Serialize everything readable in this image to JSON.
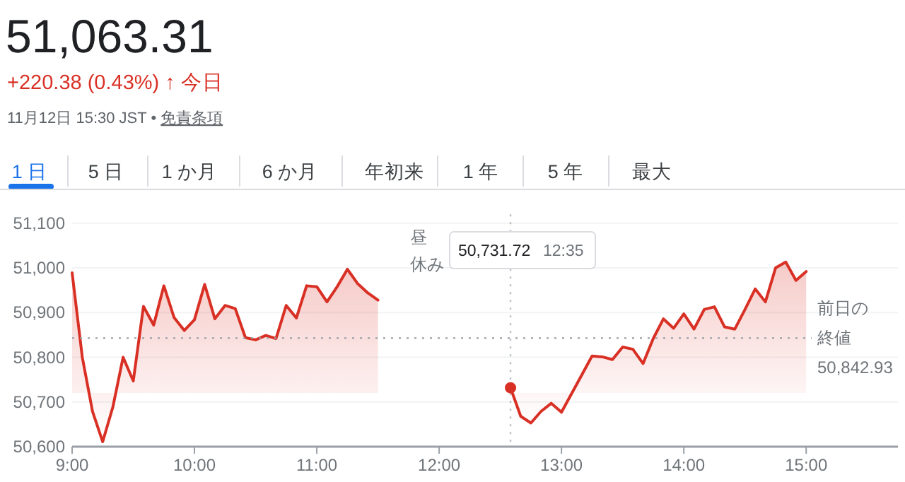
{
  "chart_data": {
    "type": "area",
    "title": "51,063.31",
    "subtitle": "+220.38 (0.43%) ↑ 今日",
    "annotations": [
      "11月12日 15:30 JST • 免責条項",
      "1 日",
      "5 日",
      "1 か月",
      "6 か月",
      "年初来",
      "1 年",
      "5 年",
      "最大",
      "昼休み",
      "50,731.72 12:35",
      "50,842.93"
    ],
    "x": [
      9,
      9.0833,
      9.1667,
      9.25,
      9.3333,
      9.4167,
      9.5,
      9.5833,
      9.6667,
      9.75,
      9.8333,
      9.9167,
      10,
      10.0833,
      10.1667,
      10.25,
      10.3333,
      10.4167,
      10.5,
      10.5833,
      10.6667,
      10.75,
      10.8333,
      10.9167,
      11,
      11.0833,
      11.1667,
      11.25,
      11.3333,
      11.4167,
      11.5,
      12.5833,
      12.6667,
      12.75,
      12.8333,
      12.9167,
      13,
      13.0833,
      13.1667,
      13.25,
      13.3333,
      13.4167,
      13.5,
      13.5833,
      13.6667,
      13.75,
      13.8333,
      13.9167,
      14,
      14.0833,
      14.1667,
      14.25,
      14.3333,
      14.4167,
      14.5,
      14.5833,
      14.6667,
      14.75,
      14.8333,
      14.9167,
      15
    ],
    "series": [
      {
        "color": "#d93025",
        "values": [
          50989,
          50800,
          50679,
          50611,
          50689,
          50800,
          50747,
          50914,
          50872,
          50960,
          50889,
          50860,
          50884,
          50963,
          50886,
          50916,
          50909,
          50844,
          50839,
          50849,
          50842,
          50916,
          50888,
          50960,
          50958,
          50924,
          50958,
          50997,
          50965,
          50944,
          50928,
          50731.72,
          50668,
          50653,
          50679,
          50697,
          50677,
          50719,
          50761,
          50803,
          50801,
          50795,
          50823,
          50818,
          50786,
          50842,
          50886,
          50865,
          50897,
          50863,
          50907,
          50913,
          50868,
          50863,
          50907,
          50953,
          50924,
          51000,
          51013,
          50972,
          50992
        ]
      }
    ],
    "xlim": [
      9,
      15.75
    ],
    "ylim": [
      50600,
      51120
    ],
    "xticks": [
      {
        "value": 9,
        "label": "9:00"
      },
      {
        "value": 10,
        "label": "10:00"
      },
      {
        "value": 11,
        "label": "11:00"
      },
      {
        "value": 12,
        "label": "12:00"
      },
      {
        "value": 13,
        "label": "13:00"
      },
      {
        "value": 14,
        "label": "14:00"
      },
      {
        "value": 15,
        "label": "15:00"
      }
    ],
    "yticks": [
      {
        "value": 50600,
        "label": "50,600"
      },
      {
        "value": 50700,
        "label": "50,700"
      },
      {
        "value": 50800,
        "label": "50,800"
      },
      {
        "value": 50900,
        "label": "50,900"
      },
      {
        "value": 51000,
        "label": "51,000"
      },
      {
        "value": 51100,
        "label": "51,100"
      }
    ],
    "ref_lines": [
      {
        "axis": "y",
        "value": 50842.93,
        "label": "前日の終値",
        "color": "#9aa0a6",
        "line_style": "dotted"
      },
      {
        "axis": "x",
        "value": 12.5833,
        "color": "#bdc1c6",
        "line_style": "dotted"
      }
    ],
    "grid": "y",
    "marker": "none",
    "line_style": "solid"
  }
}
